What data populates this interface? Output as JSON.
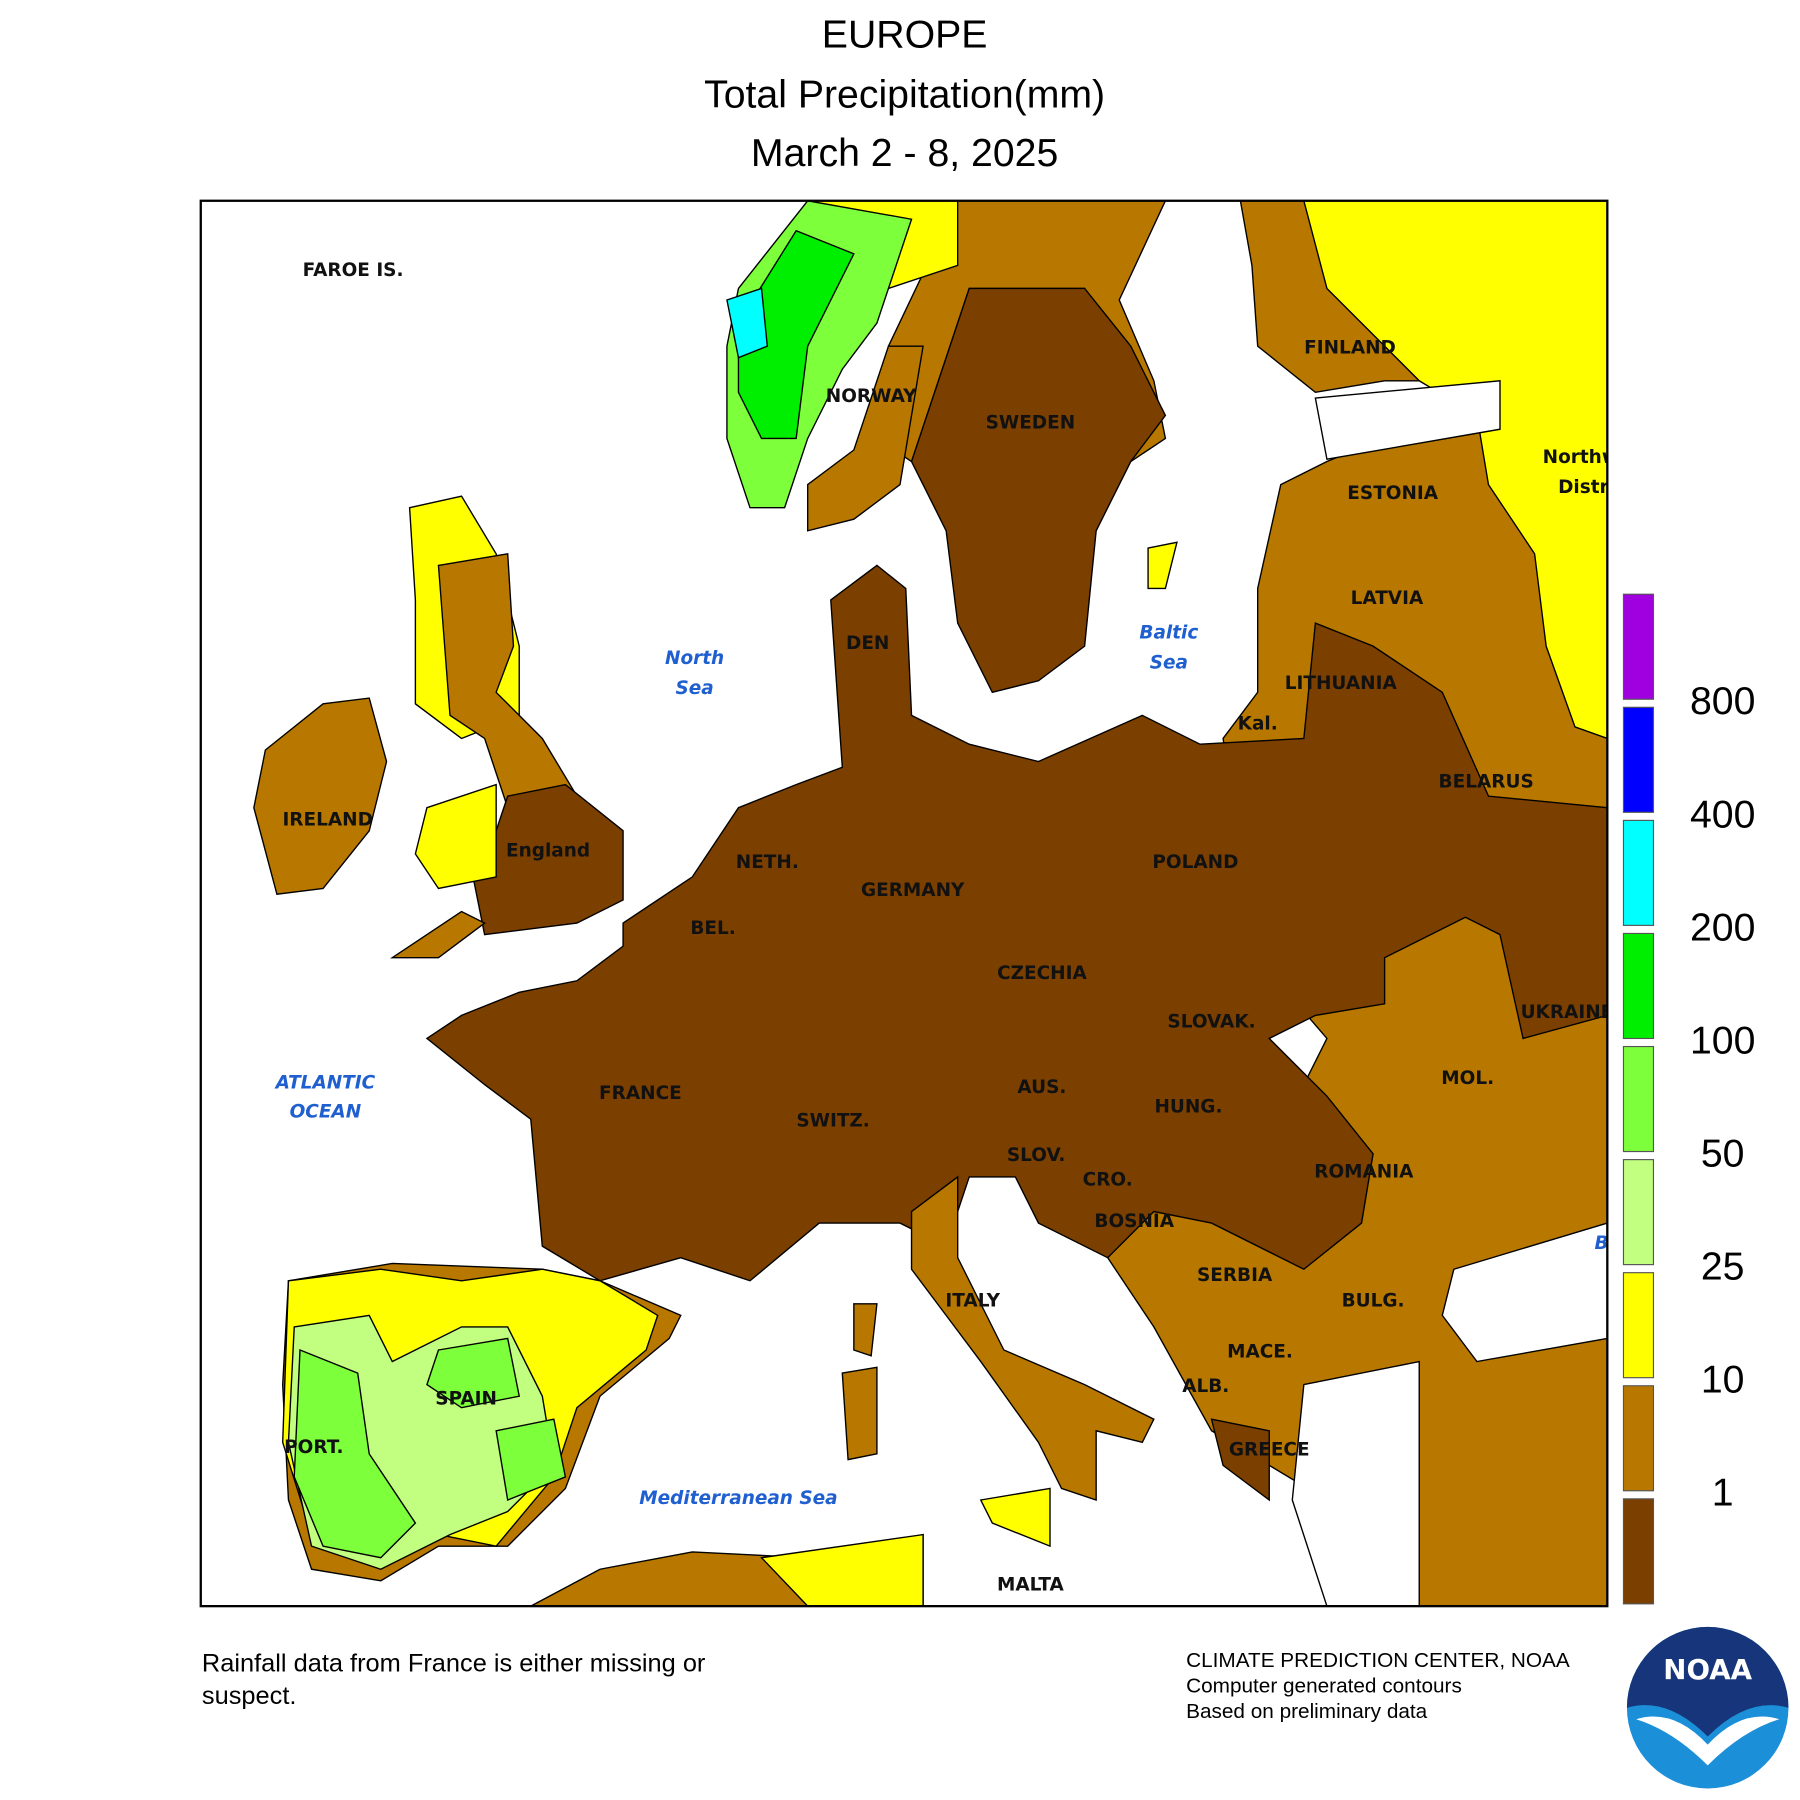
{
  "header": {
    "title": "EUROPE",
    "subtitle": "Total Precipitation(mm)",
    "dates": "March 2 - 8, 2025"
  },
  "map": {
    "labels": [
      "FAROE IS.",
      "NORWAY",
      "SWEDEN",
      "FINLAND",
      "Northw",
      "Distri",
      "ESTONIA",
      "LATVIA",
      "LITHUANIA",
      "Kal.",
      "BELARUS",
      "IRELAND",
      "England",
      "NETH.",
      "GERMANY",
      "POLAND",
      "BEL.",
      "CZECHIA",
      "SLOVAK.",
      "UKRAINE",
      "FRANCE",
      "AUS.",
      "HUNG.",
      "MOL.",
      "SWITZ.",
      "SLOV.",
      "CRO.",
      "ROMANIA",
      "BOSNIA",
      "SERBIA",
      "ITALY",
      "BULG.",
      "MACE.",
      "ALB.",
      "SPAIN",
      "GREECE",
      "PORT.",
      "MALTA",
      "DEN"
    ],
    "water_labels": [
      "North",
      "Sea",
      "Baltic",
      "Sea",
      "ATLANTIC",
      "OCEAN",
      "Mediterranean Sea",
      "B"
    ]
  },
  "legend": {
    "colors": [
      "#7b3f00",
      "#b87800",
      "#ffff00",
      "#c2ff80",
      "#7dff3c",
      "#00ee00",
      "#00ffff",
      "#0000ff",
      "#a000e0"
    ],
    "thresholds": [
      1,
      10,
      25,
      50,
      100,
      200,
      400,
      800
    ]
  },
  "footer": {
    "note": [
      "Rainfall data from France is either missing or",
      "suspect."
    ],
    "credits": [
      "CLIMATE PREDICTION CENTER, NOAA",
      "Computer generated contours",
      "Based on preliminary data"
    ]
  },
  "logo": "NOAA"
}
